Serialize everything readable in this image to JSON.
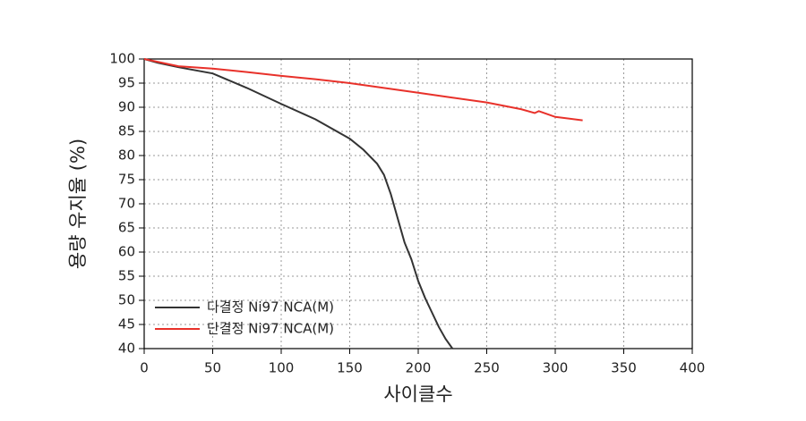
{
  "chart_data": {
    "type": "line",
    "xlabel": "사이클수",
    "ylabel": "용량 유지율 (%)",
    "xlim": [
      0,
      400
    ],
    "xticks": [
      0,
      50,
      100,
      150,
      200,
      250,
      300,
      350,
      400
    ],
    "ylim": [
      40,
      100
    ],
    "yticks": [
      40,
      45,
      50,
      55,
      60,
      65,
      70,
      75,
      80,
      85,
      90,
      95,
      100
    ],
    "grid": true,
    "legend": "lower left",
    "series": [
      {
        "name": "다결정 Ni97 NCA(M)",
        "color": "#333333",
        "x": [
          0,
          10,
          25,
          50,
          75,
          100,
          125,
          150,
          160,
          170,
          175,
          180,
          185,
          190,
          195,
          200,
          205,
          210,
          215,
          220,
          225
        ],
        "values": [
          100,
          99.2,
          98.3,
          97,
          94,
          90.7,
          87.5,
          83.5,
          81.2,
          78.3,
          76,
          72,
          67,
          62,
          58.5,
          54,
          50.5,
          47.5,
          44.5,
          42,
          40
        ]
      },
      {
        "name": "단결정 Ni97 NCA(M)",
        "color": "#e8312a",
        "x": [
          0,
          25,
          50,
          75,
          100,
          125,
          150,
          175,
          200,
          225,
          250,
          275,
          285,
          288,
          300,
          320
        ],
        "values": [
          100,
          98.5,
          98,
          97.3,
          96.5,
          95.8,
          95,
          94,
          93,
          92,
          91,
          89.6,
          88.8,
          89.2,
          88,
          87.3
        ]
      }
    ]
  }
}
